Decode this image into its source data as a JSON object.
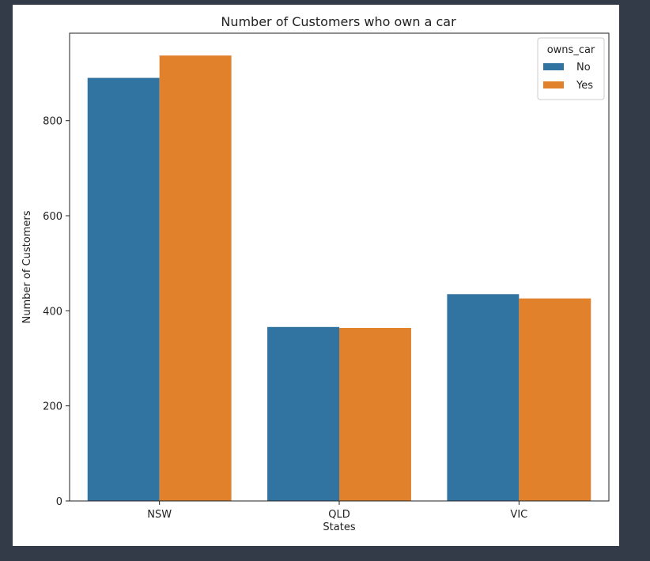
{
  "chart_data": {
    "type": "bar",
    "title": "Number of Customers who own a car",
    "xlabel": "States",
    "ylabel": "Number of Customers",
    "categories": [
      "NSW",
      "QLD",
      "VIC"
    ],
    "series": [
      {
        "name": "No",
        "color": "#3274a1",
        "values": [
          890,
          366,
          435
        ]
      },
      {
        "name": "Yes",
        "color": "#e1812c",
        "values": [
          937,
          364,
          426
        ]
      }
    ],
    "ylim": [
      0,
      984
    ],
    "yticks": [
      0,
      200,
      400,
      600,
      800
    ],
    "legend": {
      "title": "owns_car",
      "placement": "top-right"
    },
    "grid": false
  }
}
